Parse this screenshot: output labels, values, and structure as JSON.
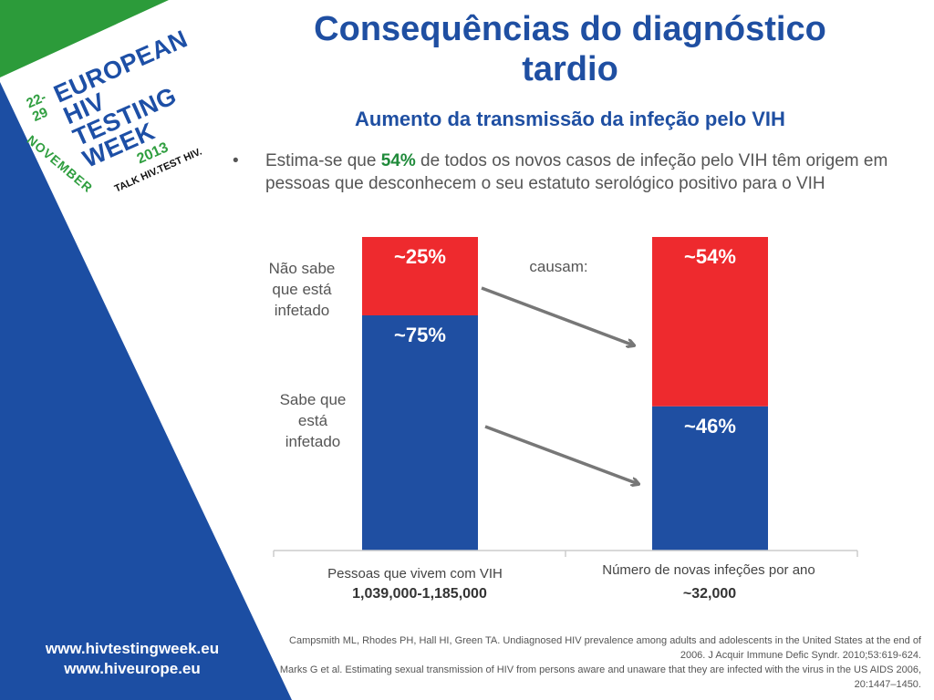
{
  "logo": {
    "dates": "22-29",
    "month": "NOVEMBER",
    "line1": "EUROPEAN",
    "line2": "HIV",
    "line3": "TESTING",
    "line4": "WEEK",
    "year": "2013",
    "tagline": "TALK HIV.TEST HIV."
  },
  "websites": [
    "www.hivtestingweek.eu",
    "www.hiveurope.eu"
  ],
  "title": {
    "line1": "Consequências do diagnóstico",
    "line2": "tardio",
    "subtitle": "Aumento da transmissão da infeção pelo VIH"
  },
  "bullet": {
    "prefix": "Estima-se que ",
    "highlight": "54%",
    "suffix": " de todos os novos casos de infeção pelo VIH têm origem em pessoas que desconhecem o seu estatuto serológico positivo para o VIH"
  },
  "labels": {
    "unaware": [
      "Não sabe",
      "que está",
      "infetado"
    ],
    "aware": [
      "Sabe que",
      "está",
      "infetado"
    ],
    "causes": "causam:"
  },
  "colors": {
    "blue": "#1f4fa2",
    "red": "#ee2a2e",
    "green": "#1f8a3a",
    "arrow": "#777777"
  },
  "chart_data": {
    "type": "bar",
    "stacked": true,
    "categories": [
      "Pessoas que vivem com VIH",
      "Número de novas infeções por ano"
    ],
    "category_values": [
      "1,039,000-1,185,000",
      "~32,000"
    ],
    "series": [
      {
        "values": [
          75,
          46
        ],
        "labels": [
          "~75%",
          "~46%"
        ],
        "color": "#1f4fa2"
      },
      {
        "values": [
          25,
          54
        ],
        "labels": [
          "~25%",
          "~54%"
        ],
        "color": "#ee2a2e"
      }
    ],
    "ylim": [
      0,
      100
    ],
    "grid": false
  },
  "references": [
    "Campsmith ML, Rhodes PH, Hall HI, Green TA. Undiagnosed HIV prevalence among adults and adolescents in the United States at the end of 2006. J Acquir Immune Defic Syndr. 2010;53:619-624.",
    "Marks G et al. Estimating sexual transmission of HIV from persons aware and unaware that they are infected with the virus in the US AIDS 2006, 20:1447–1450."
  ]
}
